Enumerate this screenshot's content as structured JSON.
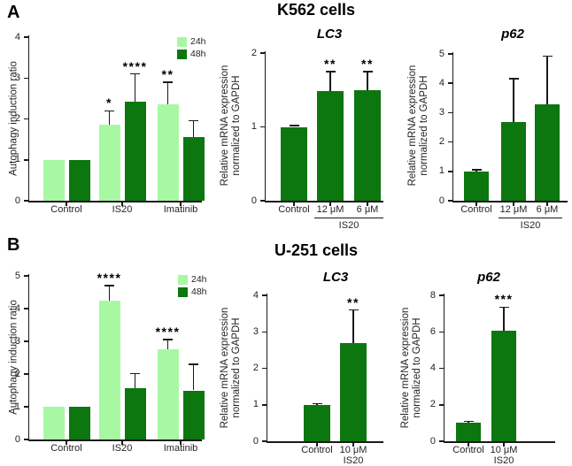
{
  "figure": {
    "panels": [
      {
        "label": "A",
        "title": "K562 cells"
      },
      {
        "label": "B",
        "title": "U-251 cells"
      }
    ]
  },
  "colors": {
    "light_green": "#a8f8a3",
    "dark_green": "#0c760f",
    "axis": "#1a1a1a",
    "text": "#231f20"
  },
  "chart_data": [
    {
      "id": "k562-autophagy",
      "type": "bar",
      "title": "",
      "ylabel_lines": [
        "Autophagy induction ratio"
      ],
      "ylim": [
        0,
        4
      ],
      "yticks": [
        0,
        1,
        2,
        3,
        4
      ],
      "legend": [
        {
          "label": "24h",
          "series": "24h"
        },
        {
          "label": "48h",
          "series": "48h"
        }
      ],
      "groups": [
        {
          "label": "Control",
          "bars": [
            {
              "series": "24h",
              "value": 1.0
            },
            {
              "series": "48h",
              "value": 1.0
            }
          ]
        },
        {
          "label": "IS20",
          "bars": [
            {
              "series": "24h",
              "value": 1.85,
              "error": 0.35,
              "sig": "*"
            },
            {
              "series": "48h",
              "value": 2.42,
              "error": 0.68,
              "sig": "****"
            }
          ]
        },
        {
          "label": "Imatinib",
          "bars": [
            {
              "series": "24h",
              "value": 2.35,
              "error": 0.55,
              "sig": "**"
            },
            {
              "series": "48h",
              "value": 1.56,
              "error": 0.4
            }
          ]
        }
      ],
      "bracket": null
    },
    {
      "id": "k562-lc3",
      "type": "bar",
      "title": "LC3",
      "ylabel_lines": [
        "Relative mRNA expression",
        "normalized to GAPDH"
      ],
      "ylim": [
        0,
        2
      ],
      "yticks": [
        0,
        1,
        2
      ],
      "legend": null,
      "groups": [
        {
          "label": "Control",
          "bars": [
            {
              "value": 1.0,
              "error": 0.02
            }
          ]
        },
        {
          "label": "12 μM",
          "bars": [
            {
              "value": 1.48,
              "error": 0.27,
              "sig": "**"
            }
          ]
        },
        {
          "label": "6 μM",
          "bars": [
            {
              "value": 1.5,
              "error": 0.25,
              "sig": "**"
            }
          ]
        }
      ],
      "bracket": {
        "from": 1,
        "to": 2,
        "label": "IS20"
      }
    },
    {
      "id": "k562-p62",
      "type": "bar",
      "title": "p62",
      "ylabel_lines": [
        "Relative mRNA expression",
        "normalized to GAPDH"
      ],
      "ylim": [
        0,
        5
      ],
      "yticks": [
        0,
        1,
        2,
        3,
        4,
        5
      ],
      "legend": null,
      "groups": [
        {
          "label": "Control",
          "bars": [
            {
              "value": 1.0,
              "error": 0.05
            }
          ]
        },
        {
          "label": "12 μM",
          "bars": [
            {
              "value": 2.67,
              "error": 1.48
            }
          ]
        },
        {
          "label": "6 μM",
          "bars": [
            {
              "value": 3.27,
              "error": 1.65
            }
          ]
        }
      ],
      "bracket": {
        "from": 1,
        "to": 2,
        "label": "IS20"
      }
    },
    {
      "id": "u251-autophagy",
      "type": "bar",
      "title": "",
      "ylabel_lines": [
        "Autophagy induction ratio"
      ],
      "ylim": [
        0,
        5
      ],
      "yticks": [
        0,
        1,
        2,
        3,
        4,
        5
      ],
      "legend": [
        {
          "label": "24h",
          "series": "24h"
        },
        {
          "label": "48h",
          "series": "48h"
        }
      ],
      "groups": [
        {
          "label": "Control",
          "bars": [
            {
              "series": "24h",
              "value": 1.0
            },
            {
              "series": "48h",
              "value": 1.0
            }
          ]
        },
        {
          "label": "IS20",
          "bars": [
            {
              "series": "24h",
              "value": 4.25,
              "error": 0.45,
              "sig": "****"
            },
            {
              "series": "48h",
              "value": 1.57,
              "error": 0.45
            }
          ]
        },
        {
          "label": "Imatinib",
          "bars": [
            {
              "series": "24h",
              "value": 2.76,
              "error": 0.3,
              "sig": "****"
            },
            {
              "series": "48h",
              "value": 1.5,
              "error": 0.8
            }
          ]
        }
      ],
      "bracket": null
    },
    {
      "id": "u251-lc3",
      "type": "bar",
      "title": "LC3",
      "ylabel_lines": [
        "Relative mRNA expression",
        "normalized to GAPDH"
      ],
      "ylim": [
        0,
        4
      ],
      "yticks": [
        0,
        1,
        2,
        3,
        4
      ],
      "legend": null,
      "groups": [
        {
          "label": "Control",
          "bars": [
            {
              "value": 1.0,
              "error": 0.03
            }
          ]
        },
        {
          "label": "10 μM",
          "sub": "IS20",
          "bars": [
            {
              "value": 2.7,
              "error": 0.9,
              "sig": "**"
            }
          ]
        }
      ],
      "bracket": null
    },
    {
      "id": "u251-p62",
      "type": "bar",
      "title": "p62",
      "ylabel_lines": [
        "Relative mRNA expression",
        "normalized to GAPDH"
      ],
      "ylim": [
        0,
        8
      ],
      "yticks": [
        0,
        2,
        4,
        6,
        8
      ],
      "legend": null,
      "groups": [
        {
          "label": "Control",
          "bars": [
            {
              "value": 1.0,
              "error": 0.08
            }
          ]
        },
        {
          "label": "10 μM",
          "sub": "IS20",
          "bars": [
            {
              "value": 6.05,
              "error": 1.3,
              "sig": "***"
            }
          ]
        }
      ],
      "bracket": null
    }
  ]
}
